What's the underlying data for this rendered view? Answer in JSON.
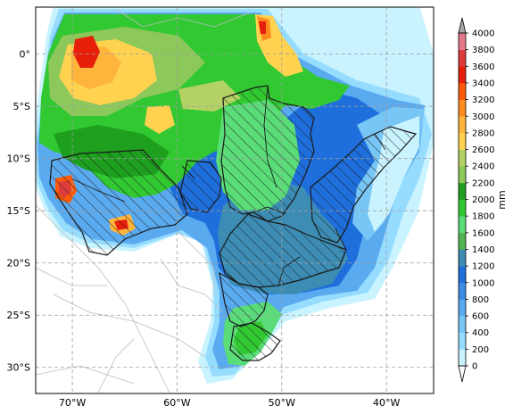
{
  "map": {
    "type": "filled-contour-precipitation-map",
    "region": "Brazil",
    "projection": "PlateCarree",
    "lon_range": [
      -73.5,
      -35.5
    ],
    "lat_range": [
      -32.5,
      4.5
    ],
    "x_ticks": [
      {
        "value": -70,
        "label": "70°W"
      },
      {
        "value": -60,
        "label": "60°W"
      },
      {
        "value": -50,
        "label": "50°W"
      },
      {
        "value": -40,
        "label": "40°W"
      }
    ],
    "y_ticks": [
      {
        "value": 0,
        "label": "0°"
      },
      {
        "value": -5,
        "label": "5°S"
      },
      {
        "value": -10,
        "label": "10°S"
      },
      {
        "value": -15,
        "label": "15°S"
      },
      {
        "value": -20,
        "label": "20°S"
      },
      {
        "value": -25,
        "label": "25°S"
      },
      {
        "value": -30,
        "label": "30°S"
      }
    ],
    "grid": true,
    "hatched_basins": true
  },
  "colorbar": {
    "label": "mm",
    "extend": "both",
    "min": 0,
    "max": 4000,
    "levels": [
      0,
      200,
      400,
      600,
      800,
      1000,
      1200,
      1400,
      1600,
      1800,
      2000,
      2200,
      2400,
      2600,
      2800,
      3000,
      3200,
      3400,
      3600,
      3800,
      4000
    ],
    "tick_labels": [
      "0",
      "200",
      "400",
      "600",
      "800",
      "1000",
      "1200",
      "1400",
      "1600",
      "1800",
      "2000",
      "2200",
      "2400",
      "2600",
      "2800",
      "3000",
      "3200",
      "3400",
      "3600",
      "3800",
      "4000"
    ],
    "colors": [
      "#ffffff",
      "#c8f3ff",
      "#96dcff",
      "#78c6f5",
      "#5aaaf0",
      "#3c8ce6",
      "#1e6edc",
      "#3c8cb4",
      "#50b450",
      "#5adc78",
      "#32c832",
      "#1ea01e",
      "#8cc85a",
      "#b4d264",
      "#ffd250",
      "#ffb43c",
      "#ff8c1e",
      "#ff5a0a",
      "#e61e0a",
      "#dc3c3c",
      "#e6788c"
    ]
  },
  "chart_data": {
    "type": "heatmap",
    "title": "",
    "xlabel": "",
    "ylabel": "",
    "xlim": [
      -73.5,
      -35.5
    ],
    "ylim": [
      -32.5,
      4.5
    ],
    "value_label": "mm",
    "value_range": [
      0,
      4000
    ],
    "regional_values": [
      {
        "lon": -69.5,
        "lat": 1.5,
        "value": 3500
      },
      {
        "lon": -51.5,
        "lat": 2.5,
        "value": 3400
      },
      {
        "lon": -70.0,
        "lat": -12.8,
        "value": 3500
      },
      {
        "lon": -65.0,
        "lat": -16.5,
        "value": 3300
      },
      {
        "lon": -66.0,
        "lat": -3.0,
        "value": 2800
      },
      {
        "lon": -60.0,
        "lat": -2.0,
        "value": 2200
      },
      {
        "lon": -55.0,
        "lat": -8.0,
        "value": 1800
      },
      {
        "lon": -48.0,
        "lat": -4.0,
        "value": 2200
      },
      {
        "lon": -45.0,
        "lat": -12.0,
        "value": 1100
      },
      {
        "lon": -40.0,
        "lat": -9.0,
        "value": 500
      },
      {
        "lon": -48.0,
        "lat": -20.0,
        "value": 1300
      },
      {
        "lon": -52.0,
        "lat": -28.0,
        "value": 1700
      },
      {
        "lon": -36.5,
        "lat": -10.0,
        "value": 300
      }
    ]
  }
}
